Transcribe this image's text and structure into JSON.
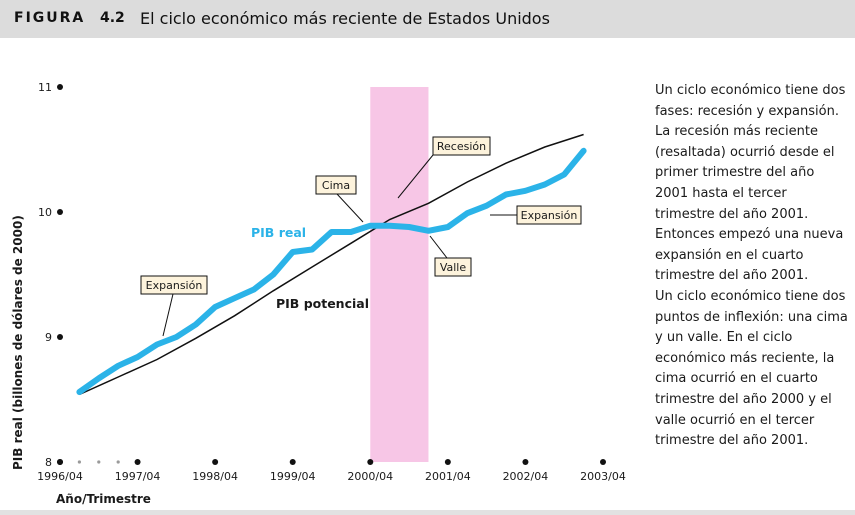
{
  "header": {
    "figure_label": "FIGURA",
    "figure_number": "4.2",
    "title": "El ciclo económico más reciente de Estados Unidos"
  },
  "side_text": {
    "paragraphs": [
      "Un ciclo económico tiene dos fases: recesión y expansión. La recesión más reciente (resaltada) ocurrió desde el primer trimestre del año 2001 hasta el tercer trimestre del año 2001. Entonces empezó una nueva expansión en el cuarto trimestre del año 2001.",
      "Un ciclo económico tiene dos puntos de inflexión: una cima y un valle. En el ciclo económico más reciente, la cima ocurrió en el cuarto trimestre del año 2000 y el valle ocurrió en el tercer trimestre del año 2001."
    ]
  },
  "colors": {
    "real_gdp": "#2bb3e8",
    "potential_gdp": "#111111",
    "recession_band": "#f7c6e6",
    "callout_fill": "#fdf3dc"
  },
  "chart_data": {
    "type": "line",
    "title": "",
    "xlabel": "Año/Trimestre",
    "ylabel": "PIB real (billones de dólares de 2000)",
    "x_ticks": [
      "1996/04",
      "1997/04",
      "1998/04",
      "1999/04",
      "2000/04",
      "2001/04",
      "2002/04",
      "2003/04"
    ],
    "y_ticks": [
      8,
      9,
      10,
      11
    ],
    "ylim": [
      8,
      11
    ],
    "xlim": [
      1996.75,
      2003.75
    ],
    "grid": false,
    "recession": {
      "start": 2000.75,
      "end": 2001.5
    },
    "series": [
      {
        "name": "PIB real",
        "x": [
          1997.0,
          1997.25,
          1997.5,
          1997.75,
          1998.0,
          1998.25,
          1998.5,
          1998.75,
          1999.0,
          1999.25,
          1999.5,
          1999.75,
          2000.0,
          2000.25,
          2000.5,
          2000.75,
          2001.0,
          2001.25,
          2001.5,
          2001.75,
          2002.0,
          2002.25,
          2002.5,
          2002.75,
          2003.0,
          2003.25,
          2003.5
        ],
        "values": [
          8.56,
          8.67,
          8.77,
          8.84,
          8.94,
          9.0,
          9.1,
          9.24,
          9.31,
          9.38,
          9.5,
          9.68,
          9.7,
          9.84,
          9.84,
          9.89,
          9.89,
          9.88,
          9.85,
          9.88,
          9.99,
          10.05,
          10.14,
          10.17,
          10.22,
          10.3,
          10.49
        ]
      },
      {
        "name": "PIB potencial",
        "x": [
          1997.0,
          1997.5,
          1998.0,
          1998.5,
          1999.0,
          1999.5,
          2000.0,
          2000.5,
          2001.0,
          2001.5,
          2002.0,
          2002.5,
          2003.0,
          2003.5
        ],
        "values": [
          8.54,
          8.68,
          8.82,
          8.99,
          9.17,
          9.37,
          9.56,
          9.75,
          9.94,
          10.07,
          10.24,
          10.39,
          10.52,
          10.62
        ]
      }
    ],
    "annotations": {
      "real_label": "PIB real",
      "potential_label": "PIB potencial",
      "expansion_1": "Expansión",
      "expansion_2": "Expansión",
      "peak": "Cima",
      "trough": "Valle",
      "recession": "Recesión"
    }
  }
}
